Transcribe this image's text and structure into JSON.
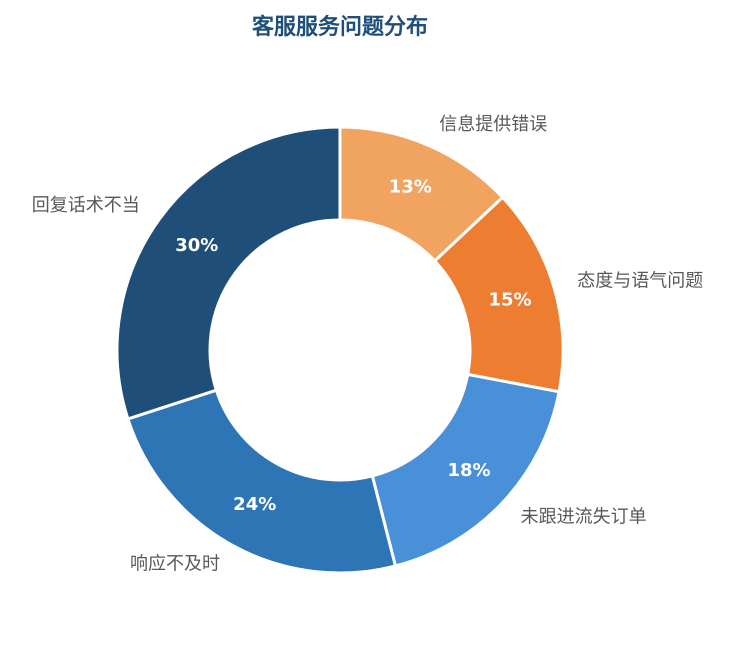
{
  "chart_data": {
    "type": "donut",
    "title": "客服服务问题分布",
    "categories": [
      "信息提供错误",
      "态度与语气问题",
      "未跟进流失订单",
      "响应不及时",
      "回复话术不当"
    ],
    "values": [
      13,
      15,
      18,
      24,
      30
    ],
    "value_labels": [
      "13%",
      "15%",
      "18%",
      "24%",
      "30%"
    ],
    "colors": [
      "#f0a460",
      "#ed7d31",
      "#4a90d9",
      "#2e75b6",
      "#1f4e79"
    ]
  }
}
